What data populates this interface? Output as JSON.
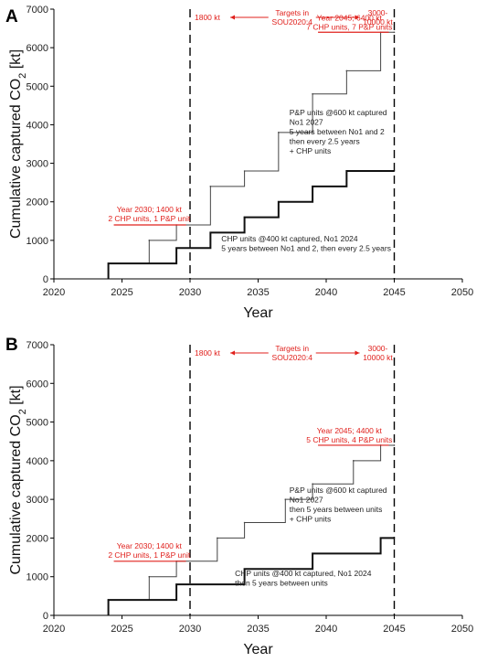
{
  "chart_data": [
    {
      "panel": "A",
      "type": "line",
      "xlabel": "Year",
      "ylabel": "Cumulative captured CO2 [kt]",
      "xlim": [
        2020,
        2050
      ],
      "ylim": [
        0,
        7000
      ],
      "xticks": [
        2020,
        2025,
        2030,
        2035,
        2040,
        2045,
        2050
      ],
      "yticks": [
        0,
        1000,
        2000,
        3000,
        4000,
        5000,
        6000,
        7000
      ],
      "series": [
        {
          "name": "P&P units @600 kt captured",
          "style": "thin",
          "x": [
            2024,
            2027,
            2029,
            2031.5,
            2034,
            2036.5,
            2039,
            2041.5,
            2044,
            2045
          ],
          "y": [
            400,
            1000,
            1400,
            2400,
            2800,
            3800,
            4800,
            5400,
            6400,
            6400
          ]
        },
        {
          "name": "CHP units @400 kt captured",
          "style": "thick",
          "x": [
            2024,
            2029,
            2031.5,
            2034,
            2036.5,
            2039,
            2041.5,
            2044,
            2045
          ],
          "y": [
            400,
            800,
            1200,
            1600,
            2000,
            2400,
            2800,
            2800,
            2800
          ]
        }
      ],
      "target_lines": [
        2030,
        2045
      ],
      "annotations": {
        "target_low": "1800 kt",
        "targets_line1": "Targets in",
        "targets_line2": "SOU2020:4",
        "target_high_line1": "3000-",
        "target_high_line2": "10000 kt",
        "y2030_line1": "Year 2030; 1400 kt",
        "y2030_line2": "2 CHP units, 1 P&P unit",
        "y2045_line1": "Year 2045; 6400 kt",
        "y2045_line2": "7 CHP units, 7 P&P units",
        "pp_lines": [
          "P&P units @600 kt captured",
          "No1 2027",
          "5 years between No1 and 2",
          "then every 2.5 years",
          "+ CHP units"
        ],
        "chp_lines": [
          "CHP units @400 kt captured, No1 2024",
          "5 years between No1 and 2, then every 2.5 years"
        ]
      }
    },
    {
      "panel": "B",
      "type": "line",
      "xlabel": "Year",
      "ylabel": "Cumulative captured CO2 [kt]",
      "xlim": [
        2020,
        2050
      ],
      "ylim": [
        0,
        7000
      ],
      "xticks": [
        2020,
        2025,
        2030,
        2035,
        2040,
        2045,
        2050
      ],
      "yticks": [
        0,
        1000,
        2000,
        3000,
        4000,
        5000,
        6000,
        7000
      ],
      "series": [
        {
          "name": "P&P units @600 kt captured",
          "style": "thin",
          "x": [
            2024,
            2027,
            2029,
            2032,
            2034,
            2037,
            2039,
            2042,
            2044,
            2045
          ],
          "y": [
            400,
            1000,
            1400,
            2000,
            2400,
            3000,
            3400,
            4000,
            4400,
            4400
          ]
        },
        {
          "name": "CHP units @400 kt captured",
          "style": "thick",
          "x": [
            2024,
            2029,
            2034,
            2039,
            2044,
            2045
          ],
          "y": [
            400,
            800,
            1200,
            1600,
            2000,
            2000
          ]
        }
      ],
      "target_lines": [
        2030,
        2045
      ],
      "annotations": {
        "target_low": "1800 kt",
        "targets_line1": "Targets in",
        "targets_line2": "SOU2020:4",
        "target_high_line1": "3000-",
        "target_high_line2": "10000 kt",
        "y2030_line1": "Year 2030; 1400 kt",
        "y2030_line2": "2 CHP units, 1 P&P unit",
        "y2045_line1": "Year 2045; 4400 kt",
        "y2045_line2": "5 CHP units, 4 P&P units",
        "pp_lines": [
          "P&P units @600 kt captured",
          "No1 2027",
          "then 5 years between units",
          "+ CHP units"
        ],
        "chp_lines": [
          "CHP units @400 kt captured, No1 2024",
          "then 5 years between units"
        ]
      }
    }
  ]
}
